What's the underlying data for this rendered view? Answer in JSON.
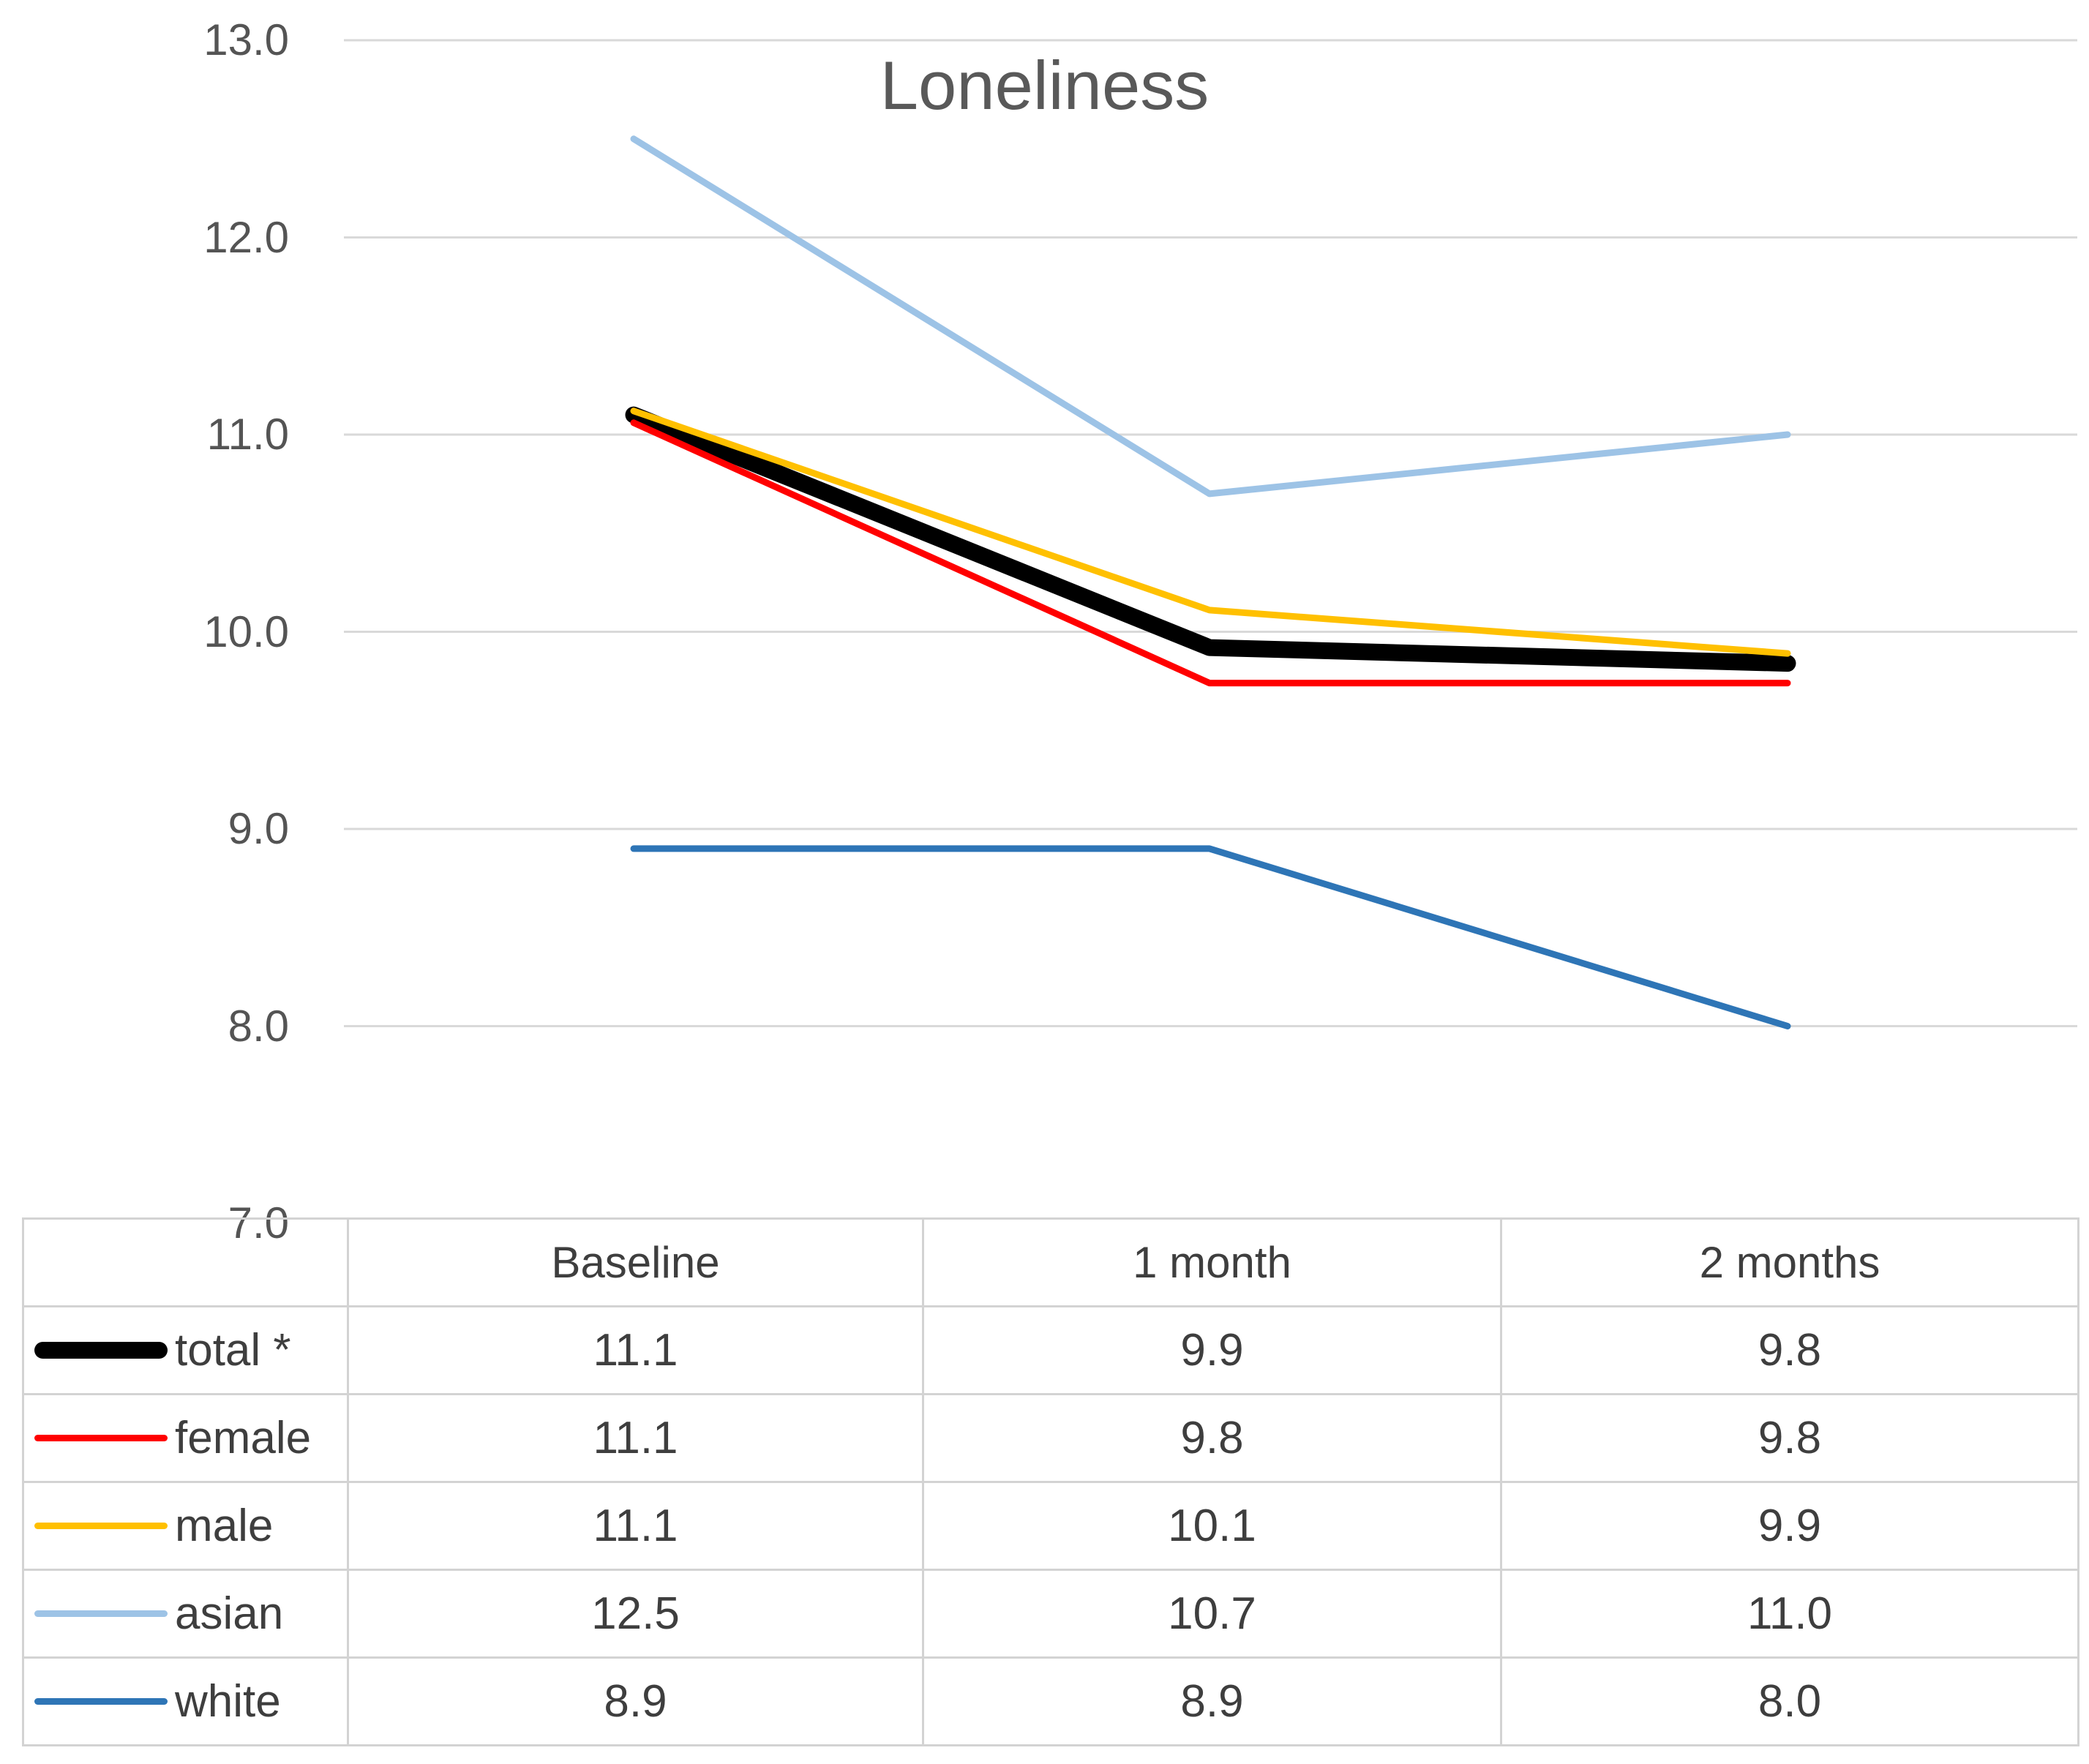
{
  "chart_data": {
    "type": "line",
    "title": "Loneliness",
    "categories": [
      "Baseline",
      "1 month",
      "2 months"
    ],
    "y_axis_tick_labels": [
      "13.0",
      "12.0",
      "11.0",
      "10.0",
      "9.0",
      "8.0",
      "7.0"
    ],
    "ylim": [
      7.0,
      13.0
    ],
    "y_tick_step": 1.0,
    "grid": true,
    "legend_position": "left column of data table",
    "data_table_shown": true,
    "series": [
      {
        "name": "total *",
        "values": [
          11.1,
          9.9,
          9.8
        ],
        "color": "#000000",
        "line": "thick",
        "plot_values": [
          11.1,
          9.92,
          9.84
        ]
      },
      {
        "name": "female",
        "values": [
          11.1,
          9.8,
          9.8
        ],
        "color": "#FF0000",
        "line": "thin",
        "plot_values": [
          11.06,
          9.74,
          9.74
        ]
      },
      {
        "name": "male",
        "values": [
          11.1,
          10.1,
          9.9
        ],
        "color": "#FFC000",
        "line": "thin",
        "plot_values": [
          11.12,
          10.11,
          9.89
        ]
      },
      {
        "name": "asian",
        "values": [
          12.5,
          10.7,
          11.0
        ],
        "color": "#9DC3E6",
        "line": "thin",
        "plot_values": [
          12.5,
          10.7,
          11.0
        ]
      },
      {
        "name": "white",
        "values": [
          8.9,
          8.9,
          8.0
        ],
        "color": "#2E75B6",
        "line": "thin",
        "plot_values": [
          8.9,
          8.9,
          8.0
        ]
      }
    ],
    "colors": {
      "gridline": "#D9D9D9",
      "axis_text": "#545454",
      "title_text": "#595959",
      "table_text": "#3E3E3E",
      "table_border": "#D3D3D3",
      "background": "#FFFFFF"
    }
  }
}
